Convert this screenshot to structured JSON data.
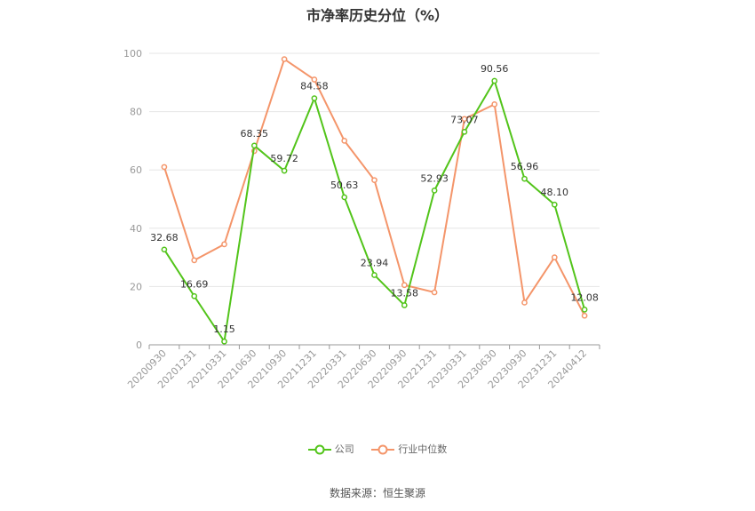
{
  "title": "市净率历史分位（%）",
  "source": "数据来源：恒生聚源",
  "colors": {
    "company": "#52c41a",
    "industry": "#f4956a"
  },
  "chart_data": {
    "type": "line",
    "title": "市净率历史分位（%）",
    "x": [
      "20200930",
      "20201231",
      "20210331",
      "20210630",
      "20210930",
      "20211231",
      "20220331",
      "20220630",
      "20220930",
      "20221231",
      "20230331",
      "20230630",
      "20230930",
      "20231231",
      "20240412"
    ],
    "ylim": [
      0,
      100
    ],
    "yticks": [
      0,
      20,
      40,
      60,
      80,
      100
    ],
    "grid": true,
    "legend_position": "bottom",
    "series": [
      {
        "name": "公司",
        "values": [
          32.68,
          16.69,
          1.15,
          68.35,
          59.72,
          84.58,
          50.63,
          23.94,
          13.58,
          52.93,
          73.07,
          90.56,
          56.96,
          48.1,
          12.08
        ],
        "labels": [
          "32.68",
          "16.69",
          "1.15",
          "68.35",
          "59.72",
          "84.58",
          "50.63",
          "23.94",
          "13.58",
          "52.93",
          "73.07",
          "90.56",
          "56.96",
          "48.10",
          "12.08"
        ]
      },
      {
        "name": "行业中位数",
        "values": [
          61,
          29,
          34.5,
          66.5,
          98,
          91,
          70,
          56.5,
          20.5,
          18,
          77.5,
          82.5,
          14.5,
          30,
          10
        ]
      }
    ]
  }
}
